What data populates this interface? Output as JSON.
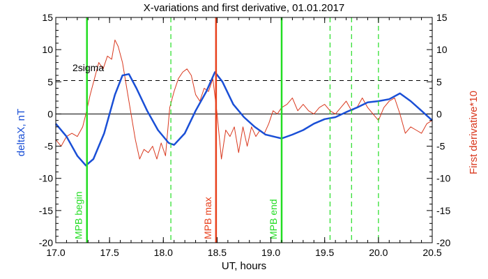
{
  "chart_data": {
    "type": "line",
    "title": "X-variations and first derivative, 01.01.2017",
    "xlabel": "UT, hours",
    "ylabel_left": "deltaX, nT",
    "ylabel_right": "First derivative*10",
    "xlim": [
      17.0,
      20.5
    ],
    "ylim": [
      -20,
      15
    ],
    "x_ticks": [
      17.0,
      17.5,
      18.0,
      18.5,
      19.0,
      19.5,
      20.0,
      20.5
    ],
    "x_tick_labels": [
      "17.0",
      "17.5",
      "18.0",
      "18.5",
      "19.0",
      "19.5",
      "20.0",
      "20.5"
    ],
    "y_ticks": [
      -20,
      -15,
      -10,
      -5,
      0,
      5,
      10,
      15
    ],
    "y_tick_labels": [
      "-20",
      "-15",
      "-10",
      "-5",
      "0",
      "5",
      "10",
      "15"
    ],
    "threshold": {
      "label": "2sigma",
      "value": 5.2
    },
    "colors": {
      "deltaX": "#1a4fd6",
      "derivative": "#d9381e",
      "mpb": "#22dd22",
      "mpb_max": "#e8401c"
    },
    "vlines": [
      {
        "x": 17.29,
        "label": "MPB begin",
        "style": "solid",
        "color": "#22dd22"
      },
      {
        "x": 18.49,
        "label": "MPB max",
        "style": "solid",
        "color": "#e8401c"
      },
      {
        "x": 19.1,
        "label": "MPB end",
        "style": "solid",
        "color": "#22dd22"
      },
      {
        "x": 18.07,
        "label": "",
        "style": "dashed",
        "color": "#22dd22"
      },
      {
        "x": 19.55,
        "label": "",
        "style": "dashed",
        "color": "#22dd22"
      },
      {
        "x": 19.75,
        "label": "",
        "style": "dashed",
        "color": "#22dd22"
      },
      {
        "x": 20.0,
        "label": "",
        "style": "dashed",
        "color": "#22dd22"
      }
    ],
    "series": [
      {
        "axis": "left",
        "x": [
          17.0,
          17.1,
          17.2,
          17.28,
          17.35,
          17.45,
          17.55,
          17.62,
          17.68,
          17.75,
          17.85,
          17.95,
          18.05,
          18.1,
          18.2,
          18.3,
          18.4,
          18.48,
          18.55,
          18.65,
          18.75,
          18.85,
          18.95,
          19.05,
          19.1,
          19.2,
          19.3,
          19.4,
          19.5,
          19.6,
          19.7,
          19.8,
          19.9,
          20.0,
          20.1,
          20.2,
          20.3,
          20.4,
          20.5
        ],
        "y": [
          -1.5,
          -3.5,
          -6.5,
          -8.0,
          -7.0,
          -3.0,
          3.0,
          6.0,
          6.2,
          4.0,
          0.5,
          -2.5,
          -4.5,
          -4.8,
          -3.0,
          0.5,
          3.5,
          6.5,
          5.0,
          1.5,
          -0.5,
          -2.0,
          -3.2,
          -3.6,
          -3.8,
          -3.2,
          -2.5,
          -1.5,
          -0.8,
          -0.5,
          0.3,
          1.0,
          1.8,
          2.0,
          2.3,
          3.2,
          2.0,
          0.5,
          -1.0
        ]
      },
      {
        "axis": "right",
        "x": [
          17.0,
          17.05,
          17.1,
          17.15,
          17.2,
          17.25,
          17.28,
          17.32,
          17.36,
          17.4,
          17.44,
          17.48,
          17.52,
          17.55,
          17.58,
          17.62,
          17.66,
          17.7,
          17.74,
          17.78,
          17.82,
          17.86,
          17.9,
          17.94,
          17.98,
          18.02,
          18.06,
          18.1,
          18.14,
          18.18,
          18.22,
          18.26,
          18.3,
          18.34,
          18.38,
          18.42,
          18.46,
          18.5,
          18.54,
          18.58,
          18.62,
          18.66,
          18.7,
          18.74,
          18.78,
          18.82,
          18.86,
          18.9,
          18.94,
          18.98,
          19.02,
          19.06,
          19.1,
          19.15,
          19.2,
          19.25,
          19.3,
          19.35,
          19.4,
          19.45,
          19.5,
          19.55,
          19.6,
          19.65,
          19.7,
          19.75,
          19.8,
          19.85,
          19.9,
          19.95,
          20.0,
          20.05,
          20.1,
          20.15,
          20.2,
          20.25,
          20.3,
          20.35,
          20.4,
          20.45,
          20.5
        ],
        "y": [
          -4.0,
          -5.0,
          -3.5,
          -3.0,
          -3.5,
          -2.0,
          0.0,
          3.0,
          5.5,
          8.0,
          7.0,
          9.0,
          8.5,
          11.5,
          10.5,
          8.0,
          4.0,
          0.0,
          -4.0,
          -7.0,
          -5.5,
          -6.0,
          -5.0,
          -7.0,
          -4.5,
          -6.5,
          1.0,
          3.5,
          5.5,
          6.5,
          7.0,
          6.0,
          3.0,
          2.0,
          4.0,
          3.5,
          5.5,
          0.0,
          -7.0,
          -2.5,
          -3.5,
          -2.0,
          -6.0,
          -2.0,
          -5.0,
          -2.0,
          -3.5,
          -2.5,
          -3.0,
          -1.5,
          0.5,
          0.0,
          1.0,
          1.5,
          2.5,
          0.5,
          1.5,
          0.5,
          0.0,
          1.0,
          1.5,
          0.5,
          0.0,
          1.0,
          2.0,
          0.5,
          1.0,
          2.5,
          1.0,
          0.0,
          -1.0,
          1.0,
          2.0,
          2.5,
          0.0,
          -3.0,
          -2.0,
          -2.5,
          -3.0,
          -1.5,
          -1.0
        ]
      }
    ]
  }
}
